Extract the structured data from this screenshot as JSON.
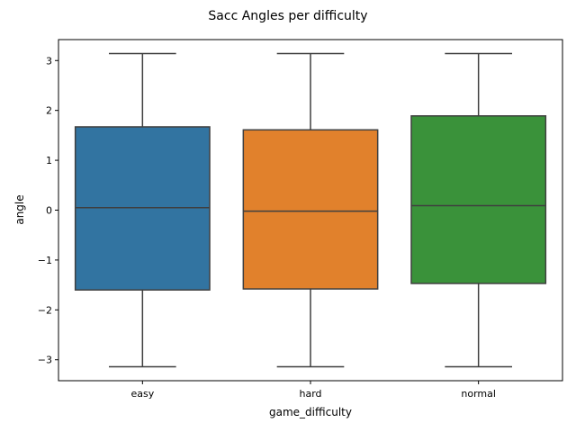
{
  "chart_data": {
    "type": "box",
    "title": "Sacc Angles per difficulty",
    "xlabel": "game_difficulty",
    "ylabel": "angle",
    "ylim": [
      -3.42,
      3.42
    ],
    "yticks": [
      -3,
      -2,
      -1,
      0,
      1,
      2,
      3
    ],
    "ytick_labels": [
      "−3",
      "−2",
      "−1",
      "0",
      "1",
      "2",
      "3"
    ],
    "categories": [
      "easy",
      "hard",
      "normal"
    ],
    "colors": [
      "#3274a1",
      "#e1812c",
      "#3a923a"
    ],
    "boxes": [
      {
        "category": "easy",
        "whisker_low": -3.14,
        "q1": -1.6,
        "median": 0.05,
        "q3": 1.67,
        "whisker_high": 3.14
      },
      {
        "category": "hard",
        "whisker_low": -3.14,
        "q1": -1.58,
        "median": -0.02,
        "q3": 1.61,
        "whisker_high": 3.14
      },
      {
        "category": "normal",
        "whisker_low": -3.14,
        "q1": -1.47,
        "median": 0.09,
        "q3": 1.89,
        "whisker_high": 3.14
      }
    ],
    "grid": false,
    "legend": "none"
  }
}
